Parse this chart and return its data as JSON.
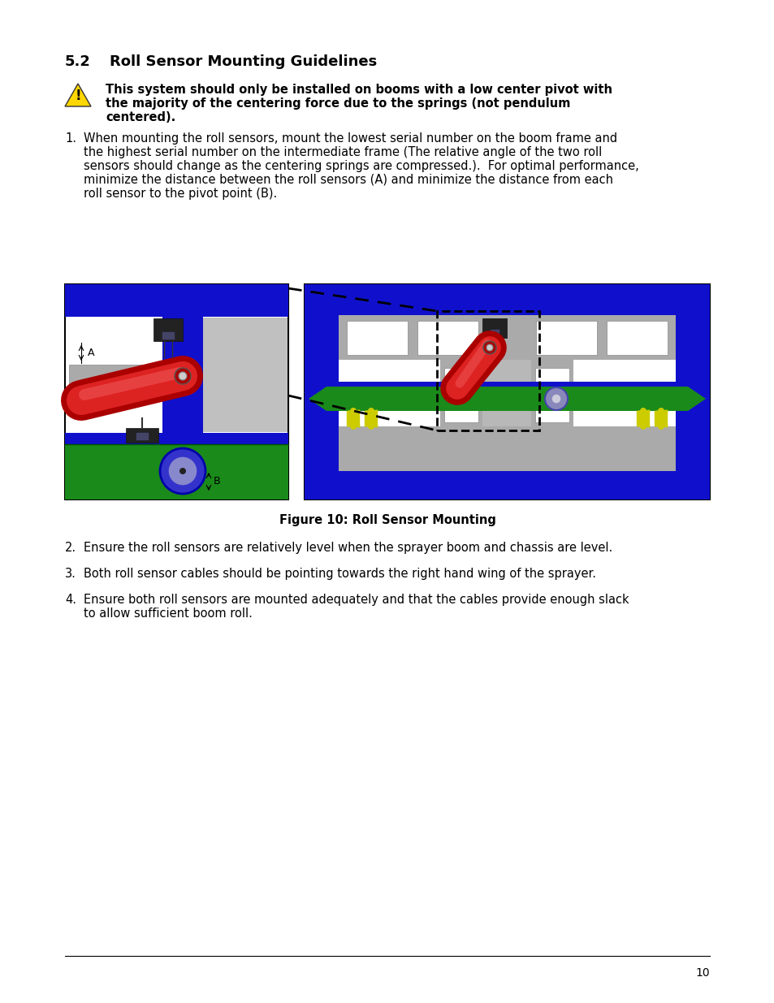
{
  "title_num": "5.2",
  "title_text": "Roll Sensor Mounting Guidelines",
  "warning_lines": [
    "This system should only be installed on booms with a low center pivot with",
    "the majority of the centering force due to the springs (not pendulum",
    "centered)."
  ],
  "item1_lines": [
    "When mounting the roll sensors, mount the lowest serial number on the boom frame and",
    "the highest serial number on the intermediate frame (The relative angle of the two roll",
    "sensors should change as the centering springs are compressed.).  For optimal performance,",
    "minimize the distance between the roll sensors (A) and minimize the distance from each",
    "roll sensor to the pivot point (B)."
  ],
  "figure_caption": "Figure 10: Roll Sensor Mounting",
  "item2": "Ensure the roll sensors are relatively level when the sprayer boom and chassis are level.",
  "item3": "Both roll sensor cables should be pointing towards the right hand wing of the sprayer.",
  "item4_lines": [
    "Ensure both roll sensors are mounted adequately and that the cables provide enough slack",
    "to allow sufficient boom roll."
  ],
  "page_number": "10",
  "bg_color": "#ffffff",
  "blue": "#1010cc",
  "green": "#1a8a1a",
  "gray_frame": "#aaaaaa",
  "gray_light": "#c8c8c8",
  "red_cyl": "#cc0000",
  "yellow_spring": "#cccc00"
}
